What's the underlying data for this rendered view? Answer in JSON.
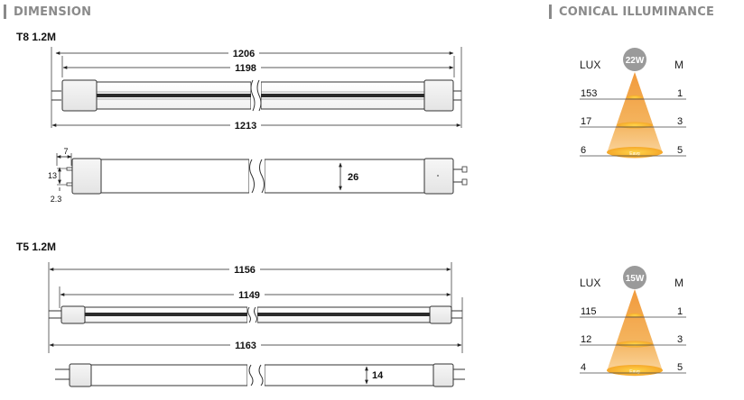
{
  "sections": {
    "dimension_title": "DIMENSION",
    "conical_title": "CONICAL ILLUMINANCE"
  },
  "t8": {
    "label": "T8 1.2M",
    "dim_outer": "1206",
    "dim_inner": "1198",
    "dim_total": "1213",
    "pin_width": "7",
    "pin_span": "13",
    "pin_dia": "2.3",
    "diameter": "26"
  },
  "t5": {
    "label": "T5 1.2M",
    "dim_outer": "1156",
    "dim_inner": "1149",
    "dim_total": "1163",
    "diameter": "14"
  },
  "cones": [
    {
      "watt": "22W",
      "lux_header": "LUX",
      "m_header": "M",
      "rows": [
        {
          "lux": "153",
          "m": "1"
        },
        {
          "lux": "17",
          "m": "3"
        },
        {
          "lux": "6",
          "m": "5"
        }
      ],
      "inner_label": "Eavg"
    },
    {
      "watt": "15W",
      "lux_header": "LUX",
      "m_header": "M",
      "rows": [
        {
          "lux": "115",
          "m": "1"
        },
        {
          "lux": "12",
          "m": "3"
        },
        {
          "lux": "4",
          "m": "5"
        }
      ],
      "inner_label": "Eavg"
    }
  ],
  "colors": {
    "cone_top": "#f5b461",
    "cone_bottom": "#e8771a",
    "watt_badge": "#9a9a9a"
  }
}
